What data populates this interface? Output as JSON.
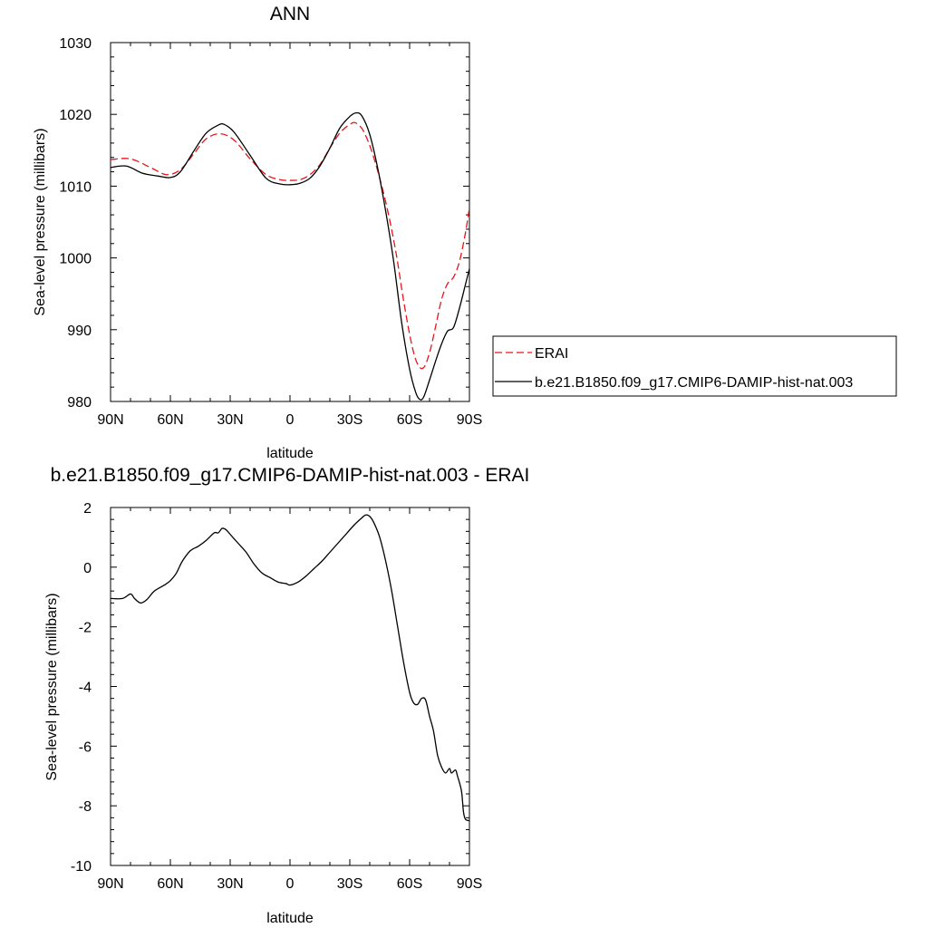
{
  "chart_data": [
    {
      "type": "line",
      "title": "ANN",
      "xlabel": "latitude",
      "ylabel": "Sea-level pressure (millibars)",
      "xlim": [
        90,
        -90
      ],
      "ylim": [
        980,
        1030
      ],
      "x_ticks": [
        90,
        60,
        30,
        0,
        -30,
        -60,
        -90
      ],
      "x_tick_labels": [
        "90N",
        "60N",
        "30N",
        "0",
        "30S",
        "60S",
        "90S"
      ],
      "y_ticks": [
        980,
        990,
        1000,
        1010,
        1020,
        1030
      ],
      "y_tick_labels": [
        "980",
        "990",
        "1000",
        "1010",
        "1020",
        "1030"
      ],
      "legend_position": "right",
      "series": [
        {
          "name": "ERAI",
          "color": "#e8141b",
          "dash": "dashed",
          "points": [
            [
              90,
              1013.7
            ],
            [
              80,
              1013.8
            ],
            [
              70,
              1012.6
            ],
            [
              62,
              1011.6
            ],
            [
              55,
              1012.3
            ],
            [
              48,
              1014.6
            ],
            [
              42,
              1016.6
            ],
            [
              35,
              1017.3
            ],
            [
              28,
              1016.4
            ],
            [
              20,
              1013.8
            ],
            [
              12,
              1011.6
            ],
            [
              5,
              1010.9
            ],
            [
              0,
              1010.8
            ],
            [
              -5,
              1010.9
            ],
            [
              -10,
              1011.6
            ],
            [
              -15,
              1013.0
            ],
            [
              -20,
              1015.3
            ],
            [
              -25,
              1017.4
            ],
            [
              -30,
              1018.6
            ],
            [
              -33,
              1018.8
            ],
            [
              -37,
              1017.6
            ],
            [
              -42,
              1014.0
            ],
            [
              -48,
              1007.8
            ],
            [
              -53,
              1001.0
            ],
            [
              -57,
              994.0
            ],
            [
              -61,
              988.0
            ],
            [
              -64,
              985.2
            ],
            [
              -67,
              984.7
            ],
            [
              -70,
              986.8
            ],
            [
              -73,
              990.4
            ],
            [
              -76,
              994.2
            ],
            [
              -79,
              996.4
            ],
            [
              -82,
              997.3
            ],
            [
              -85,
              999.5
            ],
            [
              -88,
              1003.5
            ],
            [
              -90,
              1007.0
            ]
          ]
        },
        {
          "name": "b.e21.B1850.f09_g17.CMIP6-DAMIP-hist-nat.003",
          "color": "#000000",
          "dash": "solid",
          "points": [
            [
              90,
              1012.6
            ],
            [
              82,
              1012.8
            ],
            [
              74,
              1011.8
            ],
            [
              66,
              1011.4
            ],
            [
              60,
              1011.2
            ],
            [
              55,
              1012.0
            ],
            [
              48,
              1015.0
            ],
            [
              42,
              1017.4
            ],
            [
              36,
              1018.5
            ],
            [
              33,
              1018.6
            ],
            [
              28,
              1017.5
            ],
            [
              20,
              1014.3
            ],
            [
              12,
              1011.1
            ],
            [
              5,
              1010.3
            ],
            [
              0,
              1010.2
            ],
            [
              -5,
              1010.4
            ],
            [
              -10,
              1011.1
            ],
            [
              -15,
              1012.8
            ],
            [
              -20,
              1015.3
            ],
            [
              -25,
              1018.1
            ],
            [
              -30,
              1019.7
            ],
            [
              -33,
              1020.2
            ],
            [
              -36,
              1019.8
            ],
            [
              -40,
              1017.2
            ],
            [
              -44,
              1012.5
            ],
            [
              -48,
              1006.5
            ],
            [
              -52,
              999.5
            ],
            [
              -56,
              991.0
            ],
            [
              -60,
              984.5
            ],
            [
              -63,
              981.3
            ],
            [
              -65,
              980.3
            ],
            [
              -67,
              980.6
            ],
            [
              -70,
              983.0
            ],
            [
              -73,
              985.6
            ],
            [
              -76,
              988.0
            ],
            [
              -79,
              989.8
            ],
            [
              -82,
              990.3
            ],
            [
              -85,
              993.0
            ],
            [
              -88,
              996.3
            ],
            [
              -90,
              998.5
            ]
          ]
        }
      ]
    },
    {
      "type": "line",
      "title": "b.e21.B1850.f09_g17.CMIP6-DAMIP-hist-nat.003 - ERAI",
      "xlabel": "latitude",
      "ylabel": "Sea-level pressure (millibars)",
      "xlim": [
        90,
        -90
      ],
      "ylim": [
        -10,
        2
      ],
      "x_ticks": [
        90,
        60,
        30,
        0,
        -30,
        -60,
        -90
      ],
      "x_tick_labels": [
        "90N",
        "60N",
        "30N",
        "0",
        "30S",
        "60S",
        "90S"
      ],
      "y_ticks": [
        -10,
        -8,
        -6,
        -4,
        -2,
        0,
        2
      ],
      "y_tick_labels": [
        "-10",
        "-8",
        "-6",
        "-4",
        "-2",
        "0",
        "2"
      ],
      "series": [
        {
          "color": "#000000",
          "dash": "solid",
          "points": [
            [
              90,
              -1.05
            ],
            [
              84,
              -1.05
            ],
            [
              80,
              -0.9
            ],
            [
              78,
              -1.05
            ],
            [
              75,
              -1.2
            ],
            [
              72,
              -1.1
            ],
            [
              68,
              -0.8
            ],
            [
              63,
              -0.6
            ],
            [
              60,
              -0.45
            ],
            [
              57,
              -0.2
            ],
            [
              54,
              0.2
            ],
            [
              50,
              0.55
            ],
            [
              46,
              0.7
            ],
            [
              42,
              0.9
            ],
            [
              38,
              1.15
            ],
            [
              36,
              1.15
            ],
            [
              34,
              1.3
            ],
            [
              32,
              1.25
            ],
            [
              30,
              1.1
            ],
            [
              26,
              0.8
            ],
            [
              22,
              0.5
            ],
            [
              18,
              0.1
            ],
            [
              14,
              -0.2
            ],
            [
              10,
              -0.35
            ],
            [
              6,
              -0.5
            ],
            [
              2,
              -0.55
            ],
            [
              0,
              -0.6
            ],
            [
              -4,
              -0.5
            ],
            [
              -8,
              -0.3
            ],
            [
              -12,
              -0.05
            ],
            [
              -16,
              0.2
            ],
            [
              -20,
              0.5
            ],
            [
              -24,
              0.8
            ],
            [
              -28,
              1.1
            ],
            [
              -32,
              1.4
            ],
            [
              -36,
              1.65
            ],
            [
              -38,
              1.75
            ],
            [
              -40,
              1.7
            ],
            [
              -42,
              1.5
            ],
            [
              -45,
              1.0
            ],
            [
              -48,
              0.2
            ],
            [
              -51,
              -0.8
            ],
            [
              -54,
              -2.0
            ],
            [
              -57,
              -3.2
            ],
            [
              -60,
              -4.2
            ],
            [
              -62,
              -4.55
            ],
            [
              -64,
              -4.6
            ],
            [
              -66,
              -4.4
            ],
            [
              -68,
              -4.45
            ],
            [
              -70,
              -5.0
            ],
            [
              -72,
              -5.5
            ],
            [
              -74,
              -6.3
            ],
            [
              -76,
              -6.7
            ],
            [
              -78,
              -6.9
            ],
            [
              -80,
              -6.75
            ],
            [
              -81,
              -6.9
            ],
            [
              -83,
              -6.8
            ],
            [
              -84,
              -7.0
            ],
            [
              -86,
              -7.5
            ],
            [
              -87,
              -8.2
            ],
            [
              -88,
              -8.45
            ],
            [
              -90,
              -8.5
            ]
          ]
        }
      ]
    }
  ]
}
